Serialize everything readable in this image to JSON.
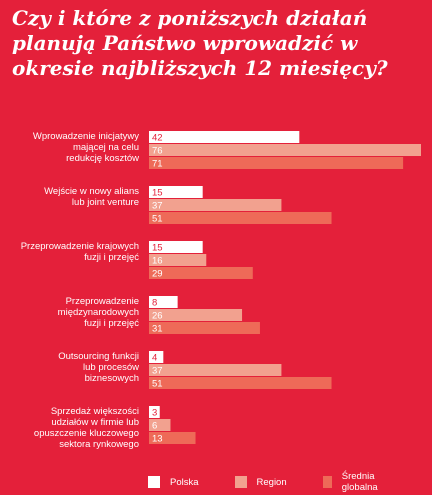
{
  "chart_data": {
    "type": "bar",
    "orientation": "horizontal",
    "title": "Czy i które z poniższych działań planują Państwo wprowadzić w okresie najbliższych 12 miesięcy?",
    "categories": [
      "Wprowadzenie inicjatywy mającej na celu redukcję kosztów",
      "Wejście w nowy alians lub joint venture",
      "Przeprowadzenie krajowych fuzji i przejęć",
      "Przeprowadzenie międzynarodowych fuzji i przejęć",
      "Outsourcing funkcji lub procesów biznesowych",
      "Sprzedaż większości udziałów w firmie lub opuszczenie kluczowego sektora rynkowego"
    ],
    "category_lines": [
      [
        "Wprowadzenie inicjatywy",
        "mającej na celu",
        "redukcję kosztów"
      ],
      [
        "Wejście w nowy alians",
        "lub joint venture"
      ],
      [
        "Przeprowadzenie krajowych",
        "fuzji i przejęć"
      ],
      [
        "Przeprowadzenie",
        "międzynarodowych",
        "fuzji i przejęć"
      ],
      [
        "Outsourcing funkcji",
        "lub procesów",
        "biznesowych"
      ],
      [
        "Sprzedaż większości",
        "udziałów w firmie lub",
        "opuszczenie kluczowego",
        "sektora rynkowego"
      ]
    ],
    "series": [
      {
        "name": "Polska",
        "color": "#ffffff",
        "values": [
          42,
          15,
          15,
          8,
          4,
          3
        ]
      },
      {
        "name": "Region",
        "color": "#f2a18f",
        "values": [
          76,
          37,
          16,
          26,
          37,
          6
        ]
      },
      {
        "name": "Średnia globalna",
        "color": "#ee6a58",
        "values": [
          71,
          51,
          29,
          31,
          51,
          13
        ]
      }
    ],
    "xlim": [
      0,
      76
    ],
    "grid": false,
    "legend_position": "bottom"
  }
}
